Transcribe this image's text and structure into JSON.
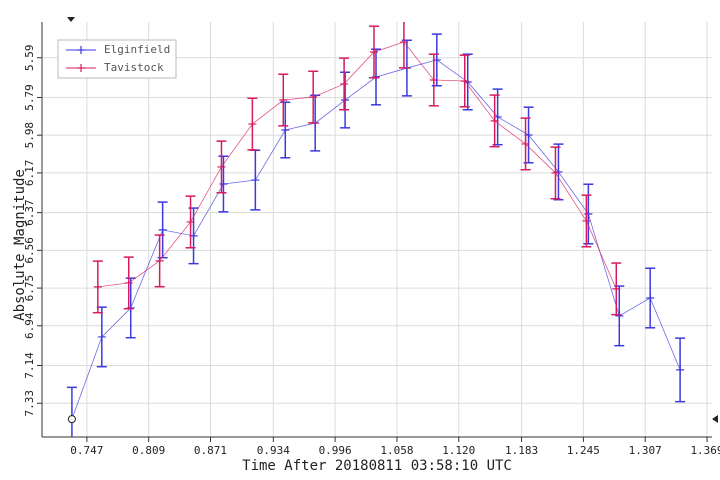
{
  "chart_data": {
    "type": "errorbar-line",
    "x_label": "Time After 20180811 03:58:10 UTC",
    "y_label": "Absolute Magnitude",
    "xlim": [
      0.702,
      1.374
    ],
    "ylim": [
      7.5,
      5.41
    ],
    "xticks": [
      0.747,
      0.809,
      0.871,
      0.934,
      0.996,
      1.058,
      {
        "value": 1.12,
        "label": "1.120"
      },
      1.183,
      1.245,
      1.307,
      1.369
    ],
    "yticks": [
      5.59,
      5.79,
      5.98,
      6.17,
      6.37,
      6.56,
      6.75,
      6.94,
      7.14,
      7.33
    ],
    "grid": true,
    "legend": "upper left",
    "series": [
      {
        "name": "Elginfield",
        "color": "#3a3ae0",
        "x": [
          0.732,
          0.762,
          0.791,
          0.823,
          0.854,
          0.884,
          0.916,
          0.946,
          0.976,
          1.006,
          1.037,
          1.068,
          1.098,
          1.129,
          1.159,
          1.19,
          1.22,
          1.25,
          1.281,
          1.312,
          1.342
        ],
        "values": [
          7.41,
          6.996,
          6.85,
          6.457,
          6.487,
          6.226,
          6.206,
          5.954,
          5.919,
          5.803,
          5.687,
          5.642,
          5.601,
          5.712,
          5.888,
          5.979,
          6.165,
          6.377,
          6.89,
          6.8,
          7.162
        ],
        "errors": [
          0.16,
          0.15,
          0.15,
          0.14,
          0.14,
          0.14,
          0.15,
          0.14,
          0.14,
          0.14,
          0.14,
          0.14,
          0.13,
          0.14,
          0.14,
          0.14,
          0.14,
          0.15,
          0.15,
          0.15,
          0.16
        ]
      },
      {
        "name": "Tavistock",
        "color": "#d81b60",
        "x": [
          0.758,
          0.789,
          0.82,
          0.851,
          0.882,
          0.913,
          0.944,
          0.974,
          1.005,
          1.035,
          1.065,
          1.095,
          1.126,
          1.156,
          1.187,
          1.217,
          1.248,
          1.278
        ],
        "values": [
          6.744,
          6.724,
          6.613,
          6.417,
          6.14,
          5.924,
          5.803,
          5.788,
          5.722,
          5.561,
          5.511,
          5.702,
          5.707,
          5.908,
          6.024,
          6.17,
          6.412,
          6.754
        ],
        "errors": [
          0.13,
          0.13,
          0.13,
          0.13,
          0.13,
          0.13,
          0.13,
          0.13,
          0.13,
          0.13,
          0.13,
          0.13,
          0.13,
          0.13,
          0.13,
          0.13,
          0.13,
          0.13
        ]
      }
    ]
  }
}
